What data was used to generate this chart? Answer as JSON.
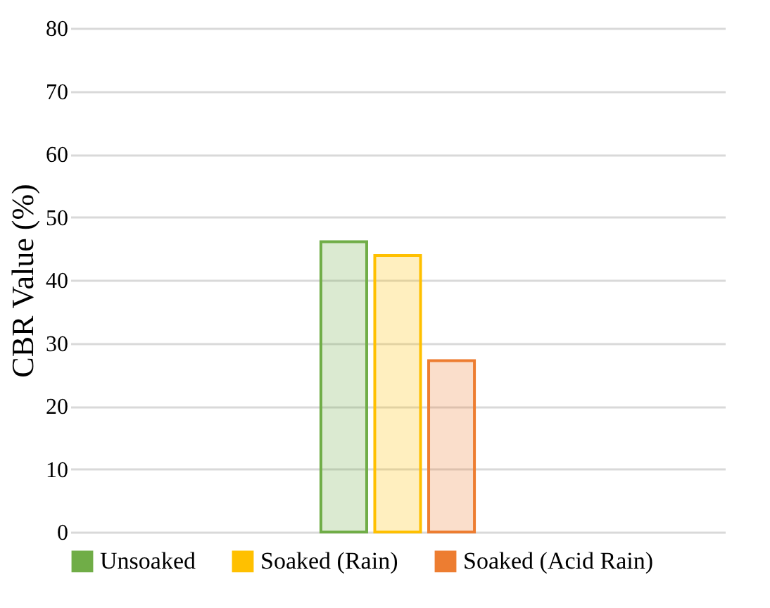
{
  "chart_data": {
    "type": "bar",
    "ylabel": "CBR Value (%)",
    "categories": [
      null
    ],
    "series": [
      {
        "name": "Unsoaked",
        "color": "#70ad47",
        "values": [
          46.1
        ]
      },
      {
        "name": "Soaked (Rain)",
        "color": "#ffc000",
        "values": [
          43.9
        ]
      },
      {
        "name": "Soaked (Acid Rain)",
        "color": "#ed7d31",
        "values": [
          27.2
        ]
      }
    ],
    "ylim": [
      0,
      80
    ],
    "yticks": [
      0,
      10,
      20,
      30,
      40,
      50,
      60,
      70,
      80
    ],
    "grid": "y",
    "legend": "bottom",
    "tick_labels": "y"
  }
}
